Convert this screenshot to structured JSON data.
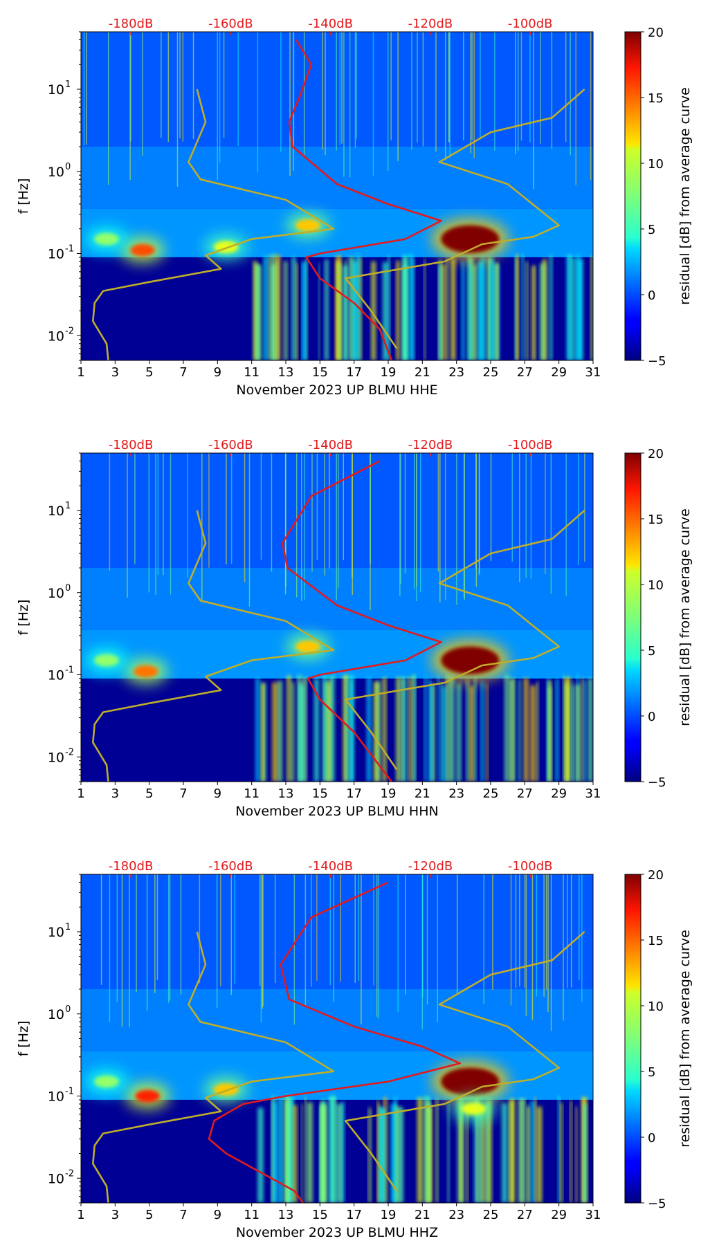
{
  "chart_data": [
    {
      "type": "heatmap",
      "xlabel": "November 2023 UP BLMU  HHE",
      "ylabel": "f [Hz]",
      "x_ticks": [
        "1",
        "3",
        "5",
        "7",
        "9",
        "11",
        "13",
        "15",
        "17",
        "19",
        "21",
        "23",
        "25",
        "27",
        "29",
        "31"
      ],
      "xlim": [
        1,
        31
      ],
      "y_scale": "log",
      "ylim": [
        0.005,
        50
      ],
      "y_ticks": [
        {
          "exp": "-2",
          "value": 0.01
        },
        {
          "exp": "-1",
          "value": 0.1
        },
        {
          "exp": "0",
          "value": 1
        },
        {
          "exp": "1",
          "value": 10
        }
      ],
      "top_ticks": [
        "-180dB",
        "-160dB",
        "-140dB",
        "-120dB",
        "-100dB"
      ],
      "colorbar": {
        "label": "residual [dB] from average curve",
        "range": [
          -5,
          20
        ],
        "ticks": [
          "20",
          "15",
          "10",
          "5",
          "0",
          "−5"
        ]
      },
      "series": [
        {
          "color": "#e31a1c",
          "points": [
            [
              13.6,
              40
            ],
            [
              14.5,
              20
            ],
            [
              13.8,
              8
            ],
            [
              13.2,
              4
            ],
            [
              13.4,
              2
            ],
            [
              16,
              0.7
            ],
            [
              19,
              0.4
            ],
            [
              22.1,
              0.25
            ],
            [
              20,
              0.15
            ],
            [
              15,
              0.1
            ],
            [
              14.2,
              0.09
            ],
            [
              15,
              0.05
            ],
            [
              17,
              0.025
            ],
            [
              18.5,
              0.012
            ],
            [
              19.2,
              0.005
            ]
          ]
        },
        {
          "color": "#bfae2a",
          "points": [
            [
              7.8,
              10
            ],
            [
              8.3,
              4
            ],
            [
              7.3,
              1.3
            ],
            [
              8,
              0.8
            ],
            [
              13,
              0.45
            ],
            [
              15.8,
              0.2
            ],
            [
              11,
              0.15
            ],
            [
              8.3,
              0.095
            ],
            [
              9.2,
              0.065
            ],
            [
              5,
              0.045
            ],
            [
              2.3,
              0.035
            ],
            [
              1.8,
              0.025
            ],
            [
              1.7,
              0.015
            ],
            [
              2.5,
              0.008
            ],
            [
              2.6,
              0.005
            ]
          ]
        },
        {
          "color": "#bfae2a",
          "points": [
            [
              30.5,
              10
            ],
            [
              28.6,
              4.5
            ],
            [
              25,
              3
            ],
            [
              22,
              1.3
            ],
            [
              26,
              0.7
            ],
            [
              29,
              0.22
            ],
            [
              27.5,
              0.16
            ],
            [
              24.5,
              0.13
            ],
            [
              22.3,
              0.08
            ],
            [
              16.5,
              0.05
            ],
            [
              18,
              0.02
            ],
            [
              19.5,
              0.007
            ]
          ]
        }
      ],
      "hotspots": [
        {
          "day": 23.8,
          "hz": 0.15,
          "level": 20
        },
        {
          "day": 4.6,
          "hz": 0.11,
          "level": 15
        },
        {
          "day": 2.5,
          "hz": 0.15,
          "level": 8
        },
        {
          "day": 9.5,
          "hz": 0.12,
          "level": 10
        },
        {
          "day": 14.3,
          "hz": 0.22,
          "level": 12
        }
      ]
    },
    {
      "type": "heatmap",
      "xlabel": "November 2023 UP BLMU  HHN",
      "ylabel": "f [Hz]",
      "x_ticks": [
        "1",
        "3",
        "5",
        "7",
        "9",
        "11",
        "13",
        "15",
        "17",
        "19",
        "21",
        "23",
        "25",
        "27",
        "29",
        "31"
      ],
      "xlim": [
        1,
        31
      ],
      "y_scale": "log",
      "ylim": [
        0.005,
        50
      ],
      "y_ticks": [
        {
          "exp": "-2",
          "value": 0.01
        },
        {
          "exp": "-1",
          "value": 0.1
        },
        {
          "exp": "0",
          "value": 1
        },
        {
          "exp": "1",
          "value": 10
        }
      ],
      "top_ticks": [
        "-180dB",
        "-160dB",
        "-140dB",
        "-120dB",
        "-100dB"
      ],
      "colorbar": {
        "label": "residual [dB] from average curve",
        "range": [
          -5,
          20
        ],
        "ticks": [
          "20",
          "15",
          "10",
          "5",
          "0",
          "−5"
        ]
      },
      "series": [
        {
          "color": "#e31a1c",
          "points": [
            [
              18.5,
              40
            ],
            [
              14.5,
              15
            ],
            [
              12.8,
              4
            ],
            [
              13.1,
              2
            ],
            [
              16,
              0.7
            ],
            [
              19,
              0.4
            ],
            [
              22.1,
              0.25
            ],
            [
              20,
              0.15
            ],
            [
              15,
              0.1
            ],
            [
              14.3,
              0.09
            ],
            [
              15,
              0.05
            ],
            [
              17,
              0.02
            ],
            [
              19.2,
              0.005
            ]
          ]
        },
        {
          "color": "#bfae2a",
          "points": [
            [
              7.8,
              10
            ],
            [
              8.3,
              4
            ],
            [
              7.3,
              1.3
            ],
            [
              8,
              0.8
            ],
            [
              13,
              0.45
            ],
            [
              15.8,
              0.2
            ],
            [
              11,
              0.15
            ],
            [
              8.3,
              0.095
            ],
            [
              9.2,
              0.065
            ],
            [
              5,
              0.045
            ],
            [
              2.3,
              0.035
            ],
            [
              1.8,
              0.025
            ],
            [
              1.7,
              0.015
            ],
            [
              2.5,
              0.008
            ],
            [
              2.6,
              0.005
            ]
          ]
        },
        {
          "color": "#bfae2a",
          "points": [
            [
              30.5,
              10
            ],
            [
              28.6,
              4.5
            ],
            [
              25,
              3
            ],
            [
              22,
              1.3
            ],
            [
              26,
              0.7
            ],
            [
              29,
              0.22
            ],
            [
              27.5,
              0.16
            ],
            [
              24.5,
              0.13
            ],
            [
              22.3,
              0.08
            ],
            [
              16.5,
              0.05
            ],
            [
              18,
              0.02
            ],
            [
              19.5,
              0.007
            ]
          ]
        }
      ],
      "hotspots": [
        {
          "day": 23.8,
          "hz": 0.15,
          "level": 20
        },
        {
          "day": 4.8,
          "hz": 0.11,
          "level": 14
        },
        {
          "day": 2.5,
          "hz": 0.15,
          "level": 8
        },
        {
          "day": 14.3,
          "hz": 0.22,
          "level": 12
        }
      ]
    },
    {
      "type": "heatmap",
      "xlabel": "November 2023 UP BLMU  HHZ",
      "ylabel": "f [Hz]",
      "x_ticks": [
        "1",
        "3",
        "5",
        "7",
        "9",
        "11",
        "13",
        "15",
        "17",
        "19",
        "21",
        "23",
        "25",
        "27",
        "29",
        "31"
      ],
      "xlim": [
        1,
        31
      ],
      "y_scale": "log",
      "ylim": [
        0.005,
        50
      ],
      "y_ticks": [
        {
          "exp": "-2",
          "value": 0.01
        },
        {
          "exp": "-1",
          "value": 0.1
        },
        {
          "exp": "0",
          "value": 1
        },
        {
          "exp": "1",
          "value": 10
        }
      ],
      "top_ticks": [
        "-180dB",
        "-160dB",
        "-140dB",
        "-120dB",
        "-100dB"
      ],
      "colorbar": {
        "label": "residual [dB] from average curve",
        "range": [
          -5,
          20
        ],
        "ticks": [
          "20",
          "15",
          "10",
          "5",
          "0",
          "−5"
        ]
      },
      "series": [
        {
          "color": "#e31a1c",
          "points": [
            [
              19,
              40
            ],
            [
              14.5,
              15
            ],
            [
              12.7,
              4
            ],
            [
              13.2,
              1.5
            ],
            [
              17,
              0.7
            ],
            [
              21,
              0.4
            ],
            [
              23.2,
              0.25
            ],
            [
              19,
              0.15
            ],
            [
              13,
              0.1
            ],
            [
              10.5,
              0.08
            ],
            [
              8.8,
              0.05
            ],
            [
              8.5,
              0.03
            ],
            [
              9.5,
              0.02
            ],
            [
              13.5,
              0.007
            ],
            [
              14,
              0.005
            ]
          ]
        },
        {
          "color": "#bfae2a",
          "points": [
            [
              7.8,
              10
            ],
            [
              8.3,
              4
            ],
            [
              7.3,
              1.3
            ],
            [
              8,
              0.8
            ],
            [
              13,
              0.45
            ],
            [
              15.8,
              0.2
            ],
            [
              11,
              0.15
            ],
            [
              8.3,
              0.095
            ],
            [
              9.2,
              0.065
            ],
            [
              5,
              0.045
            ],
            [
              2.3,
              0.035
            ],
            [
              1.8,
              0.025
            ],
            [
              1.7,
              0.015
            ],
            [
              2.5,
              0.008
            ],
            [
              2.6,
              0.005
            ]
          ]
        },
        {
          "color": "#bfae2a",
          "points": [
            [
              30.5,
              10
            ],
            [
              28.6,
              4.5
            ],
            [
              25,
              3
            ],
            [
              22,
              1.3
            ],
            [
              26,
              0.7
            ],
            [
              29,
              0.22
            ],
            [
              27.5,
              0.16
            ],
            [
              24.5,
              0.13
            ],
            [
              22.3,
              0.08
            ],
            [
              16.5,
              0.05
            ],
            [
              18,
              0.02
            ],
            [
              19.5,
              0.007
            ]
          ]
        }
      ],
      "hotspots": [
        {
          "day": 23.8,
          "hz": 0.15,
          "level": 20
        },
        {
          "day": 24,
          "hz": 0.07,
          "level": 10
        },
        {
          "day": 4.9,
          "hz": 0.1,
          "level": 16
        },
        {
          "day": 9.5,
          "hz": 0.12,
          "level": 12
        },
        {
          "day": 2.5,
          "hz": 0.15,
          "level": 8
        }
      ]
    }
  ]
}
